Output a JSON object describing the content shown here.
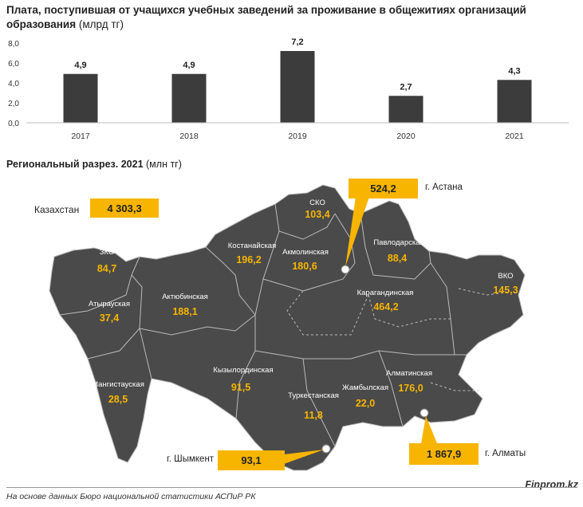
{
  "header": {
    "title_bold": "Плата, поступившая от учащихся учебных заведений за проживание в общежитиях организаций образования",
    "title_unit": "(млрд тг)"
  },
  "chart_data": {
    "type": "bar",
    "categories": [
      "2017",
      "2018",
      "2019",
      "2020",
      "2021"
    ],
    "values": [
      4.9,
      4.9,
      7.2,
      2.7,
      4.3
    ],
    "value_labels": [
      "4,9",
      "4,9",
      "7,2",
      "2,7",
      "4,3"
    ],
    "ylim": [
      0,
      8
    ],
    "yticks": [
      "0,0",
      "2,0",
      "4,0",
      "6,0",
      "8,0"
    ],
    "grid": false,
    "bar_color": "#3c3c3c"
  },
  "map_section": {
    "subtitle_bold": "Региональный разрез. 2021",
    "subtitle_unit": "(млн тг)",
    "total_label": "Казахстан",
    "total_value": "4 303,3",
    "regions": [
      {
        "name": "СКО",
        "value": "103,4"
      },
      {
        "name": "Костанайская",
        "value": "196,2"
      },
      {
        "name": "Акмолинская",
        "value": "180,6"
      },
      {
        "name": "Павлодарская",
        "value": "88,4"
      },
      {
        "name": "ЗКО",
        "value": "84,7"
      },
      {
        "name": "ВКО",
        "value": "145,3"
      },
      {
        "name": "Атырауская",
        "value": "37,4"
      },
      {
        "name": "Актюбинская",
        "value": "188,1"
      },
      {
        "name": "Карагандинская",
        "value": "464,2"
      },
      {
        "name": "Кызылординская",
        "value": "91,5"
      },
      {
        "name": "Мангистауская",
        "value": "28,5"
      },
      {
        "name": "Туркестанская",
        "value": "11,8"
      },
      {
        "name": "Жамбылская",
        "value": "22,0"
      },
      {
        "name": "Алматинская",
        "value": "176,0"
      }
    ],
    "cities": {
      "astana": {
        "label": "г. Астана",
        "value": "524,2"
      },
      "shymkent": {
        "label": "г. Шымкент",
        "value": "93,1"
      },
      "almaty": {
        "label": "г. Алматы",
        "value": "1 867,9"
      }
    },
    "colors": {
      "map_fill": "#4a4a4a",
      "accent": "#f7b500"
    }
  },
  "footer": {
    "source": "На основе данных Бюро национальной статистики АСПиР РК",
    "brand": "Finprom.kz"
  }
}
